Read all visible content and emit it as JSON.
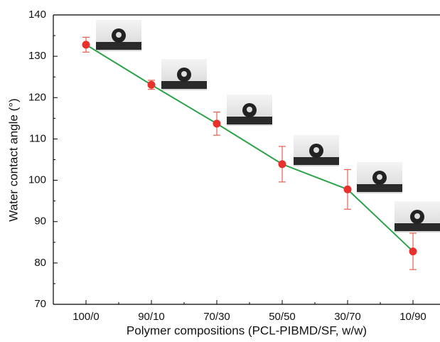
{
  "chart_data": {
    "type": "line",
    "xlabel": "Polymer compositions (PCL-PIBMD/SF, w/w)",
    "ylabel": "Water contact angle (°)",
    "categories": [
      "100/0",
      "90/10",
      "70/30",
      "50/50",
      "30/70",
      "10/90"
    ],
    "series": [
      {
        "color": "#2ca24a",
        "marker_color": "#e8302c",
        "error_color": "#e8604f",
        "values": [
          132.8,
          123.1,
          113.7,
          103.9,
          97.8,
          82.8
        ],
        "errors": [
          1.8,
          1.1,
          2.8,
          4.3,
          4.8,
          4.4
        ]
      }
    ],
    "ylim": [
      70,
      140
    ],
    "yticks": [
      70,
      80,
      90,
      100,
      110,
      120,
      130,
      140
    ]
  }
}
